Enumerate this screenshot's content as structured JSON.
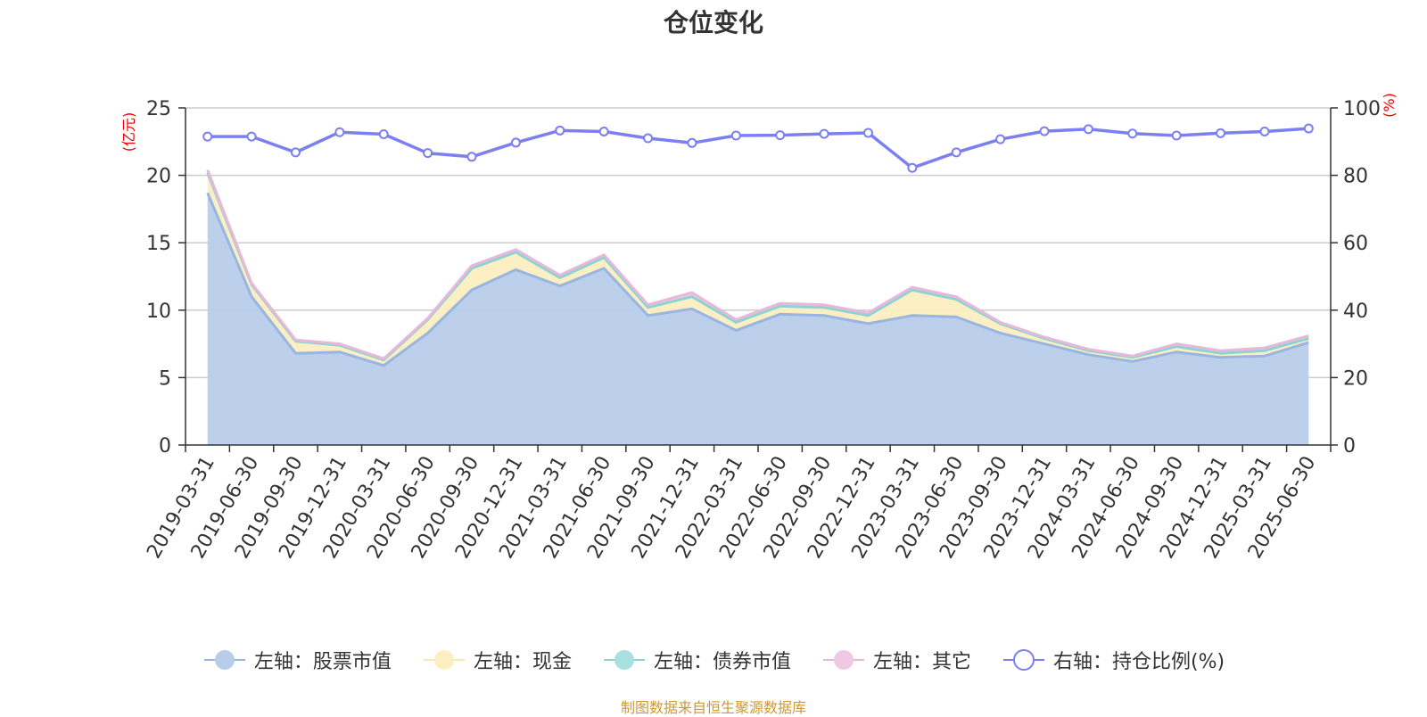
{
  "page": {
    "title": "仓位变化",
    "source": "制图数据来自恒生聚源数据库"
  },
  "chart_data": {
    "type": "area",
    "title": "仓位变化",
    "left_axis_label": "(亿元)",
    "right_axis_label": "(%)",
    "ylim_left": [
      0,
      25
    ],
    "ylim_right": [
      0,
      100
    ],
    "left_ticks": [
      0,
      5,
      10,
      15,
      20,
      25
    ],
    "right_ticks": [
      0,
      20,
      40,
      60,
      80,
      100
    ],
    "grid": true,
    "legend_position": "bottom",
    "categories": [
      "2019-03-31",
      "2019-06-30",
      "2019-09-30",
      "2019-12-31",
      "2020-03-31",
      "2020-06-30",
      "2020-09-30",
      "2020-12-31",
      "2021-03-31",
      "2021-06-30",
      "2021-09-30",
      "2021-12-31",
      "2022-03-31",
      "2022-06-30",
      "2022-09-30",
      "2022-12-31",
      "2023-03-31",
      "2023-06-30",
      "2023-09-30",
      "2023-12-31",
      "2024-03-31",
      "2024-06-30",
      "2024-09-30",
      "2024-12-31",
      "2025-03-31",
      "2025-06-30"
    ],
    "series": [
      {
        "name": "左轴：股票市值",
        "axis": "left",
        "stacked": true,
        "color": "#9ab5e0",
        "fill": "#b8cdea",
        "values": [
          18.7,
          11.0,
          6.8,
          6.9,
          5.9,
          8.3,
          11.5,
          13.0,
          11.8,
          13.1,
          9.6,
          10.1,
          8.5,
          9.7,
          9.6,
          9.0,
          9.6,
          9.5,
          8.3,
          7.5,
          6.7,
          6.2,
          6.9,
          6.5,
          6.6,
          7.6
        ]
      },
      {
        "name": "左轴：现金",
        "axis": "left",
        "stacked": true,
        "color": "#f7e8b4",
        "fill": "#fbeec0",
        "values": [
          1.5,
          0.9,
          0.9,
          0.5,
          0.4,
          1.0,
          1.6,
          1.3,
          0.6,
          0.8,
          0.6,
          0.9,
          0.6,
          0.6,
          0.6,
          0.6,
          1.9,
          1.3,
          0.7,
          0.4,
          0.3,
          0.3,
          0.4,
          0.3,
          0.4,
          0.3
        ]
      },
      {
        "name": "左轴：债券市值",
        "axis": "left",
        "stacked": true,
        "color": "#8dd3d4",
        "fill": "#a9dfdf",
        "values": [
          0,
          0,
          0,
          0,
          0,
          0,
          0,
          0,
          0,
          0,
          0,
          0,
          0,
          0,
          0,
          0,
          0,
          0,
          0,
          0,
          0,
          0,
          0,
          0,
          0,
          0
        ]
      },
      {
        "name": "左轴：其它",
        "axis": "left",
        "stacked": true,
        "color": "#e8b8da",
        "fill": "#efc9e3",
        "values": [
          0.2,
          0.1,
          0.1,
          0.1,
          0.1,
          0.1,
          0.2,
          0.2,
          0.2,
          0.2,
          0.2,
          0.3,
          0.2,
          0.2,
          0.2,
          0.2,
          0.2,
          0.2,
          0.1,
          0.1,
          0.1,
          0.1,
          0.2,
          0.2,
          0.2,
          0.2
        ]
      },
      {
        "name": "右轴：持仓比例(%)",
        "axis": "right",
        "stacked": false,
        "color": "#7b7ff0",
        "values": [
          91.5,
          91.5,
          86.8,
          92.8,
          92.2,
          86.6,
          85.5,
          89.7,
          93.3,
          93.0,
          91.0,
          89.6,
          91.8,
          91.9,
          92.3,
          92.6,
          82.2,
          86.8,
          90.7,
          93.1,
          93.7,
          92.4,
          91.8,
          92.5,
          93.0,
          93.9
        ]
      }
    ]
  }
}
